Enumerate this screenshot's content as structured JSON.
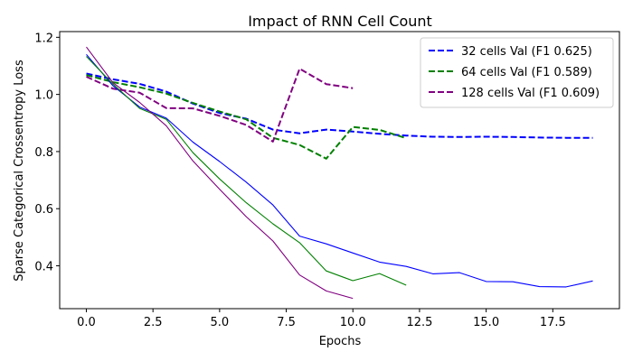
{
  "chart_data": {
    "type": "line",
    "title": "Impact of RNN Cell Count",
    "xlabel": "Epochs",
    "ylabel": "Sparse Categorical Crossentropy Loss",
    "xlim": [
      -1.0,
      20.0
    ],
    "ylim": [
      0.25,
      1.22
    ],
    "xticks": [
      0.0,
      2.5,
      5.0,
      7.5,
      10.0,
      12.5,
      15.0,
      17.5
    ],
    "xtick_labels": [
      "0.0",
      "2.5",
      "5.0",
      "7.5",
      "10.0",
      "12.5",
      "15.0",
      "17.5"
    ],
    "yticks": [
      0.4,
      0.6,
      0.8,
      1.0,
      1.2
    ],
    "ytick_labels": [
      "0.4",
      "0.6",
      "0.8",
      "1.0",
      "1.2"
    ],
    "grid": false,
    "legend_position": "top-right",
    "series": [
      {
        "name": "32 cells Val (F1 0.625)",
        "color": "#0000ff",
        "style": "dashed",
        "in_legend": true,
        "x": [
          0,
          1,
          2,
          3,
          4,
          5,
          6,
          7,
          8,
          9,
          10,
          11,
          12,
          13,
          14,
          15,
          16,
          17,
          18,
          19
        ],
        "y": [
          1.073,
          1.053,
          1.037,
          1.01,
          0.968,
          0.935,
          0.915,
          0.877,
          0.864,
          0.877,
          0.87,
          0.862,
          0.856,
          0.852,
          0.851,
          0.852,
          0.851,
          0.849,
          0.848,
          0.848
        ]
      },
      {
        "name": "64 cells Val (F1 0.589)",
        "color": "#008000",
        "style": "dashed",
        "in_legend": true,
        "x": [
          0,
          1,
          2,
          3,
          4,
          5,
          6,
          7,
          8,
          9,
          10,
          11,
          12
        ],
        "y": [
          1.068,
          1.043,
          1.025,
          1.003,
          0.97,
          0.94,
          0.913,
          0.848,
          0.823,
          0.775,
          0.886,
          0.876,
          0.847
        ]
      },
      {
        "name": "128 cells Val (F1 0.609)",
        "color": "#800080",
        "style": "dashed",
        "in_legend": true,
        "x": [
          0,
          1,
          2,
          3,
          4,
          5,
          6,
          7,
          8,
          9,
          10
        ],
        "y": [
          1.062,
          1.02,
          1.006,
          0.952,
          0.951,
          0.925,
          0.893,
          0.835,
          1.09,
          1.036,
          1.022
        ]
      },
      {
        "name": "",
        "color": "#0000ff",
        "style": "solid",
        "in_legend": false,
        "x": [
          0,
          1,
          2,
          3,
          4,
          5,
          6,
          7,
          8,
          9,
          10,
          11,
          12,
          13,
          14,
          15,
          16,
          17,
          18,
          19
        ],
        "y": [
          1.14,
          1.03,
          0.956,
          0.917,
          0.833,
          0.765,
          0.693,
          0.613,
          0.504,
          0.477,
          0.445,
          0.413,
          0.398,
          0.372,
          0.376,
          0.345,
          0.344,
          0.327,
          0.326,
          0.347
        ]
      },
      {
        "name": "",
        "color": "#008000",
        "style": "solid",
        "in_legend": false,
        "x": [
          0,
          1,
          2,
          3,
          4,
          5,
          6,
          7,
          8,
          9,
          10,
          11,
          12
        ],
        "y": [
          1.133,
          1.036,
          0.951,
          0.913,
          0.796,
          0.704,
          0.621,
          0.547,
          0.481,
          0.382,
          0.348,
          0.373,
          0.332
        ]
      },
      {
        "name": "",
        "color": "#800080",
        "style": "solid",
        "in_legend": false,
        "x": [
          0,
          1,
          2,
          3,
          4,
          5,
          6,
          7,
          8,
          9,
          10
        ],
        "y": [
          1.166,
          1.041,
          0.972,
          0.89,
          0.767,
          0.668,
          0.572,
          0.487,
          0.368,
          0.312,
          0.286
        ]
      }
    ]
  }
}
